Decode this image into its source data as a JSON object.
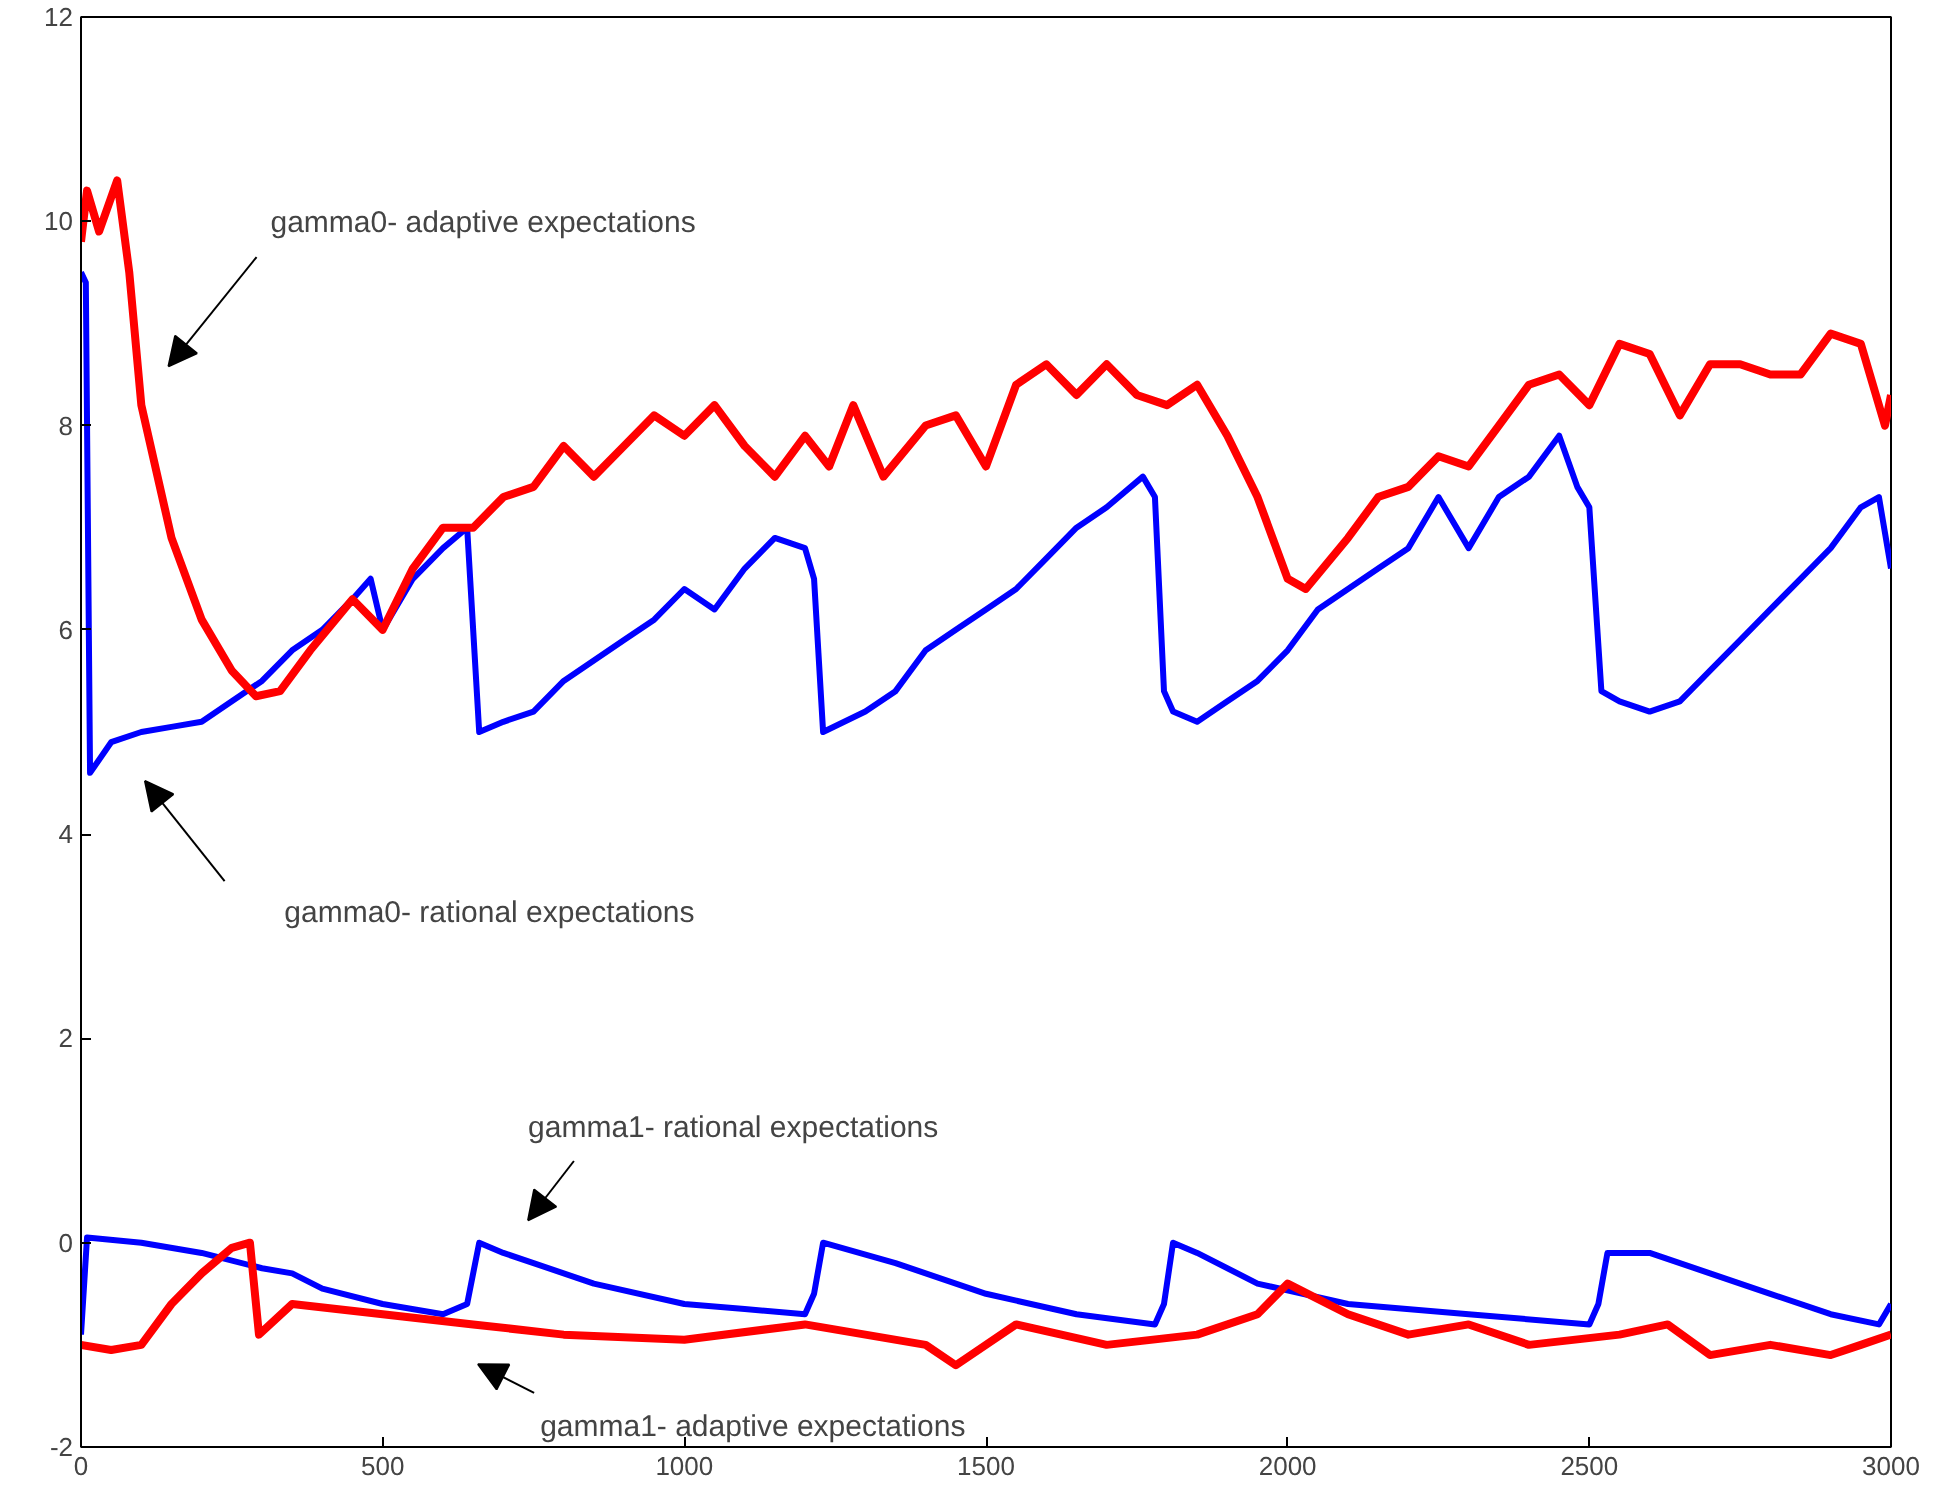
{
  "chart_data": {
    "type": "line",
    "xlim": [
      0,
      3000
    ],
    "ylim": [
      -2,
      12
    ],
    "xticks": [
      0,
      500,
      1000,
      1500,
      2000,
      2500,
      3000
    ],
    "yticks": [
      -2,
      0,
      2,
      4,
      6,
      8,
      10,
      12
    ],
    "grid": false,
    "marker": "none",
    "line_style": "solid",
    "series": [
      {
        "color": "#0000ff",
        "x": [
          0,
          8,
          15,
          50,
          100,
          150,
          200,
          250,
          300,
          350,
          400,
          450,
          480,
          500,
          520,
          550,
          600,
          640,
          660,
          700,
          750,
          800,
          850,
          900,
          950,
          1000,
          1050,
          1100,
          1150,
          1200,
          1215,
          1230,
          1300,
          1350,
          1400,
          1450,
          1500,
          1550,
          1600,
          1650,
          1700,
          1760,
          1780,
          1795,
          1810,
          1850,
          1900,
          1950,
          2000,
          2050,
          2100,
          2150,
          2200,
          2250,
          2300,
          2350,
          2400,
          2450,
          2480,
          2500,
          2520,
          2550,
          2600,
          2650,
          2700,
          2750,
          2800,
          2850,
          2900,
          2950,
          2980,
          3000
        ],
        "values": [
          9.5,
          9.4,
          4.6,
          4.9,
          5.0,
          5.05,
          5.1,
          5.3,
          5.5,
          5.8,
          6.0,
          6.3,
          6.5,
          6.0,
          6.2,
          6.5,
          6.8,
          7.0,
          5.0,
          5.1,
          5.2,
          5.5,
          5.7,
          5.9,
          6.1,
          6.4,
          6.2,
          6.6,
          6.9,
          6.8,
          6.5,
          5.0,
          5.2,
          5.4,
          5.8,
          6.0,
          6.2,
          6.4,
          6.7,
          7.0,
          7.2,
          7.5,
          7.3,
          5.4,
          5.2,
          5.1,
          5.3,
          5.5,
          5.8,
          6.2,
          6.4,
          6.6,
          6.8,
          7.3,
          6.8,
          7.3,
          7.5,
          7.9,
          7.4,
          7.2,
          5.4,
          5.3,
          5.2,
          5.3,
          5.6,
          5.9,
          6.2,
          6.5,
          6.8,
          7.2,
          7.3,
          6.6
        ]
      },
      {
        "color": "#ff0000",
        "x": [
          0,
          10,
          30,
          60,
          80,
          100,
          150,
          200,
          250,
          290,
          330,
          380,
          450,
          500,
          550,
          600,
          650,
          700,
          750,
          800,
          850,
          900,
          950,
          1000,
          1050,
          1100,
          1150,
          1200,
          1240,
          1280,
          1330,
          1400,
          1450,
          1500,
          1550,
          1600,
          1650,
          1700,
          1750,
          1800,
          1850,
          1900,
          1950,
          2000,
          2030,
          2100,
          2150,
          2200,
          2250,
          2300,
          2350,
          2400,
          2450,
          2500,
          2550,
          2600,
          2650,
          2700,
          2750,
          2800,
          2850,
          2900,
          2950,
          2990,
          3000
        ],
        "values": [
          9.8,
          10.3,
          9.9,
          10.4,
          9.5,
          8.2,
          6.9,
          6.1,
          5.6,
          5.35,
          5.4,
          5.8,
          6.3,
          6.0,
          6.6,
          7.0,
          7.0,
          7.3,
          7.4,
          7.8,
          7.5,
          7.8,
          8.1,
          7.9,
          8.2,
          7.8,
          7.5,
          7.9,
          7.6,
          8.2,
          7.5,
          8.0,
          8.1,
          7.6,
          8.4,
          8.6,
          8.3,
          8.6,
          8.3,
          8.2,
          8.4,
          7.9,
          7.3,
          6.5,
          6.4,
          6.9,
          7.3,
          7.4,
          7.7,
          7.6,
          8.0,
          8.4,
          8.5,
          8.2,
          8.8,
          8.7,
          8.1,
          8.6,
          8.6,
          8.5,
          8.5,
          8.9,
          8.8,
          8.0,
          8.3
        ]
      },
      {
        "color": "#0000ff",
        "x": [
          0,
          10,
          100,
          200,
          300,
          350,
          400,
          500,
          600,
          640,
          660,
          700,
          750,
          850,
          1000,
          1100,
          1200,
          1215,
          1230,
          1350,
          1500,
          1650,
          1780,
          1795,
          1810,
          1850,
          1950,
          2100,
          2300,
          2500,
          2515,
          2530,
          2600,
          2700,
          2800,
          2900,
          2980,
          3000
        ],
        "values": [
          -0.9,
          0.05,
          0.0,
          -0.1,
          -0.25,
          -0.3,
          -0.45,
          -0.6,
          -0.7,
          -0.6,
          0.0,
          -0.1,
          -0.2,
          -0.4,
          -0.6,
          -0.65,
          -0.7,
          -0.5,
          0.0,
          -0.2,
          -0.5,
          -0.7,
          -0.8,
          -0.6,
          0.0,
          -0.1,
          -0.4,
          -0.6,
          -0.7,
          -0.8,
          -0.6,
          -0.1,
          -0.1,
          -0.3,
          -0.5,
          -0.7,
          -0.8,
          -0.6
        ]
      },
      {
        "color": "#ff0000",
        "x": [
          0,
          50,
          100,
          150,
          200,
          250,
          280,
          295,
          350,
          500,
          650,
          800,
          1000,
          1200,
          1400,
          1450,
          1550,
          1700,
          1850,
          1950,
          2000,
          2100,
          2200,
          2300,
          2400,
          2550,
          2630,
          2700,
          2800,
          2900,
          2950,
          3000
        ],
        "values": [
          -1.0,
          -1.05,
          -1.0,
          -0.6,
          -0.3,
          -0.05,
          0.0,
          -0.9,
          -0.6,
          -0.7,
          -0.8,
          -0.9,
          -0.95,
          -0.8,
          -1.0,
          -1.2,
          -0.8,
          -1.0,
          -0.9,
          -0.7,
          -0.4,
          -0.7,
          -0.9,
          -0.8,
          -1.0,
          -0.9,
          -0.8,
          -1.1,
          -1.0,
          -1.1,
          -1.0,
          -0.9
        ]
      }
    ],
    "annotations": [
      "gamma0- adaptive expectations",
      "gamma0- rational expectations",
      "gamma1- rational expectations",
      "gamma1- adaptive expectations"
    ]
  }
}
